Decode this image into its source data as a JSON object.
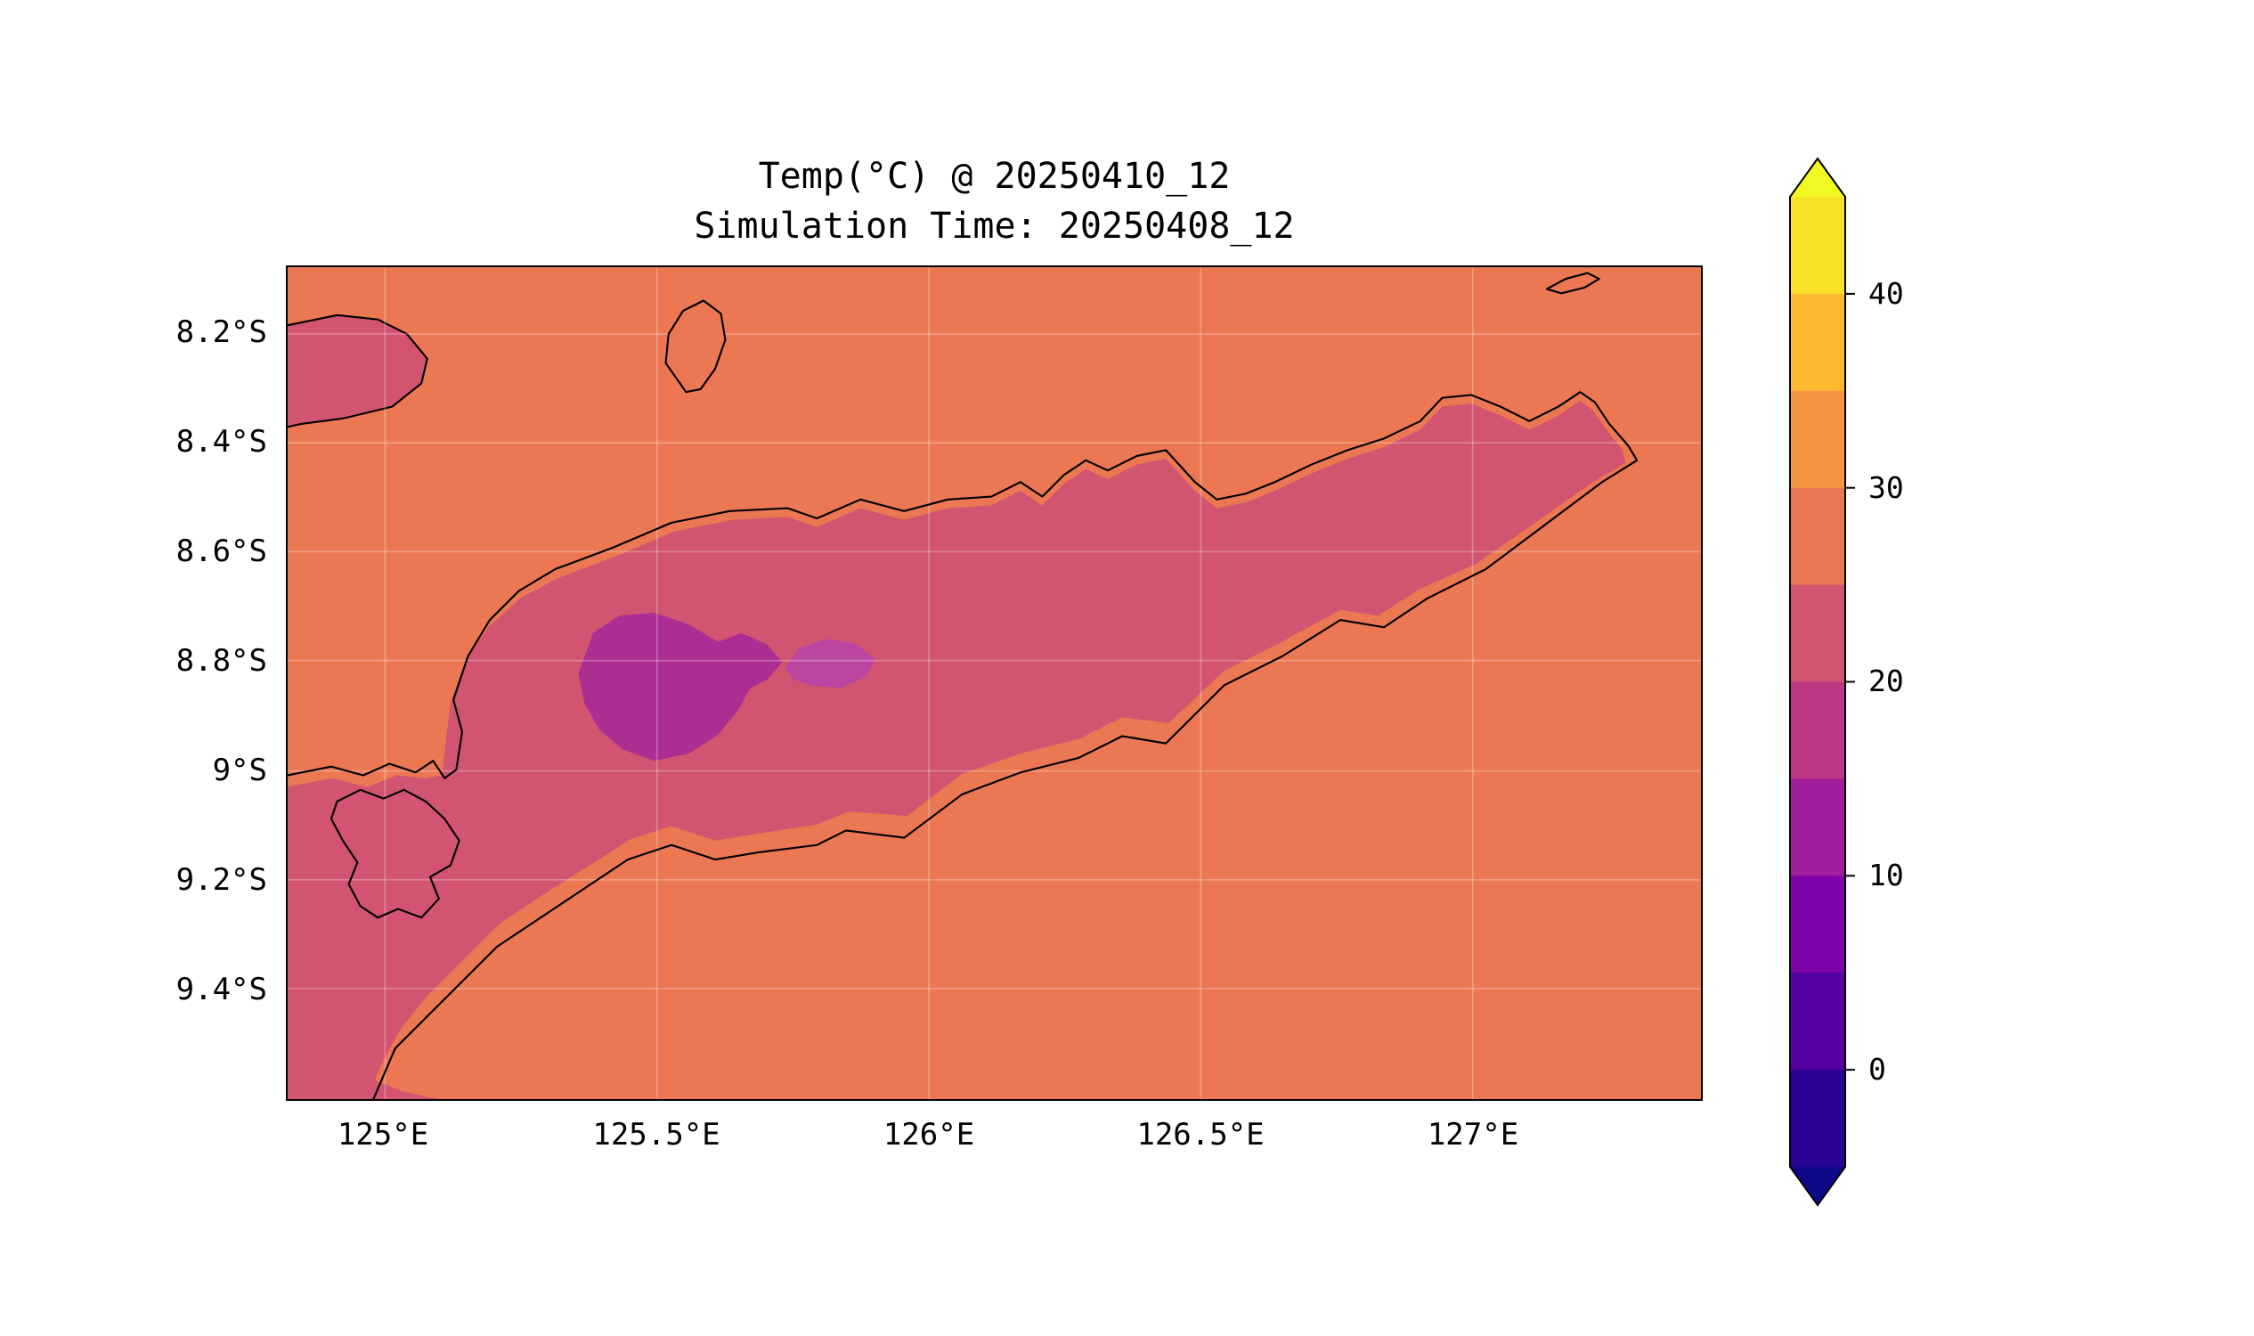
{
  "chart_data": {
    "type": "heatmap",
    "chart_kind": "filled contour map of 2 m temperature over the Timor region with coastlines and colorbar",
    "title": "Temp(°C) @ 20250410_12",
    "subtitle": "Simulation Time: 20250408_12",
    "variable": "Temperature",
    "units": "°C",
    "x_tick_labels": [
      "125°E",
      "125.5°E",
      "126°E",
      "126.5°E",
      "127°E"
    ],
    "y_tick_labels": [
      "8.2°S",
      "8.4°S",
      "8.6°S",
      "8.8°S",
      "9°S",
      "9.2°S",
      "9.4°S"
    ],
    "x_range_deg_east": [
      124.8,
      127.4
    ],
    "y_range_deg_south": [
      8.1,
      9.6
    ],
    "grid": true,
    "legend_position": "right colorbar",
    "colorbar": {
      "tick_values": [
        40,
        30,
        20,
        10,
        0
      ],
      "levels_c": [
        -5,
        0,
        5,
        10,
        15,
        20,
        25,
        30,
        35,
        40,
        45
      ],
      "extend": "both"
    },
    "contour_regions": [
      {
        "region": "open sea and coastal lowlands (most of domain)",
        "temp_range_c": [
          25,
          30
        ]
      },
      {
        "region": "Timor island interior and southwest corner of domain",
        "temp_range_c": [
          20,
          25
        ]
      },
      {
        "region": "central highlands near 125.4-125.6°E, 8.7-9.0°S",
        "temp_range_c": [
          15,
          20
        ]
      },
      {
        "region": "small cool core near 125.7°E, 8.8°S",
        "temp_range_c": [
          10,
          15
        ]
      }
    ]
  },
  "colors": {
    "figure_background": "#ffffff",
    "sea_fill": "#ec7853",
    "band_20_25": "#d25470",
    "band_15_20": "#ad2e93",
    "band_core": "#bb46a1",
    "coastline": "#000000",
    "gridline": "rgba(255,255,255,0.28)",
    "colorbar_segments_top_to_bottom": [
      "#f6e226",
      "#fdb92f",
      "#f89540",
      "#ec7853",
      "#d25470",
      "#bd3786",
      "#a01d9b",
      "#7e03a8",
      "#5601a4",
      "#2a0593"
    ],
    "colorbar_over_arrow": "#f0f921",
    "colorbar_under_arrow": "#0d0887",
    "colorbar_outline": "#000000"
  }
}
